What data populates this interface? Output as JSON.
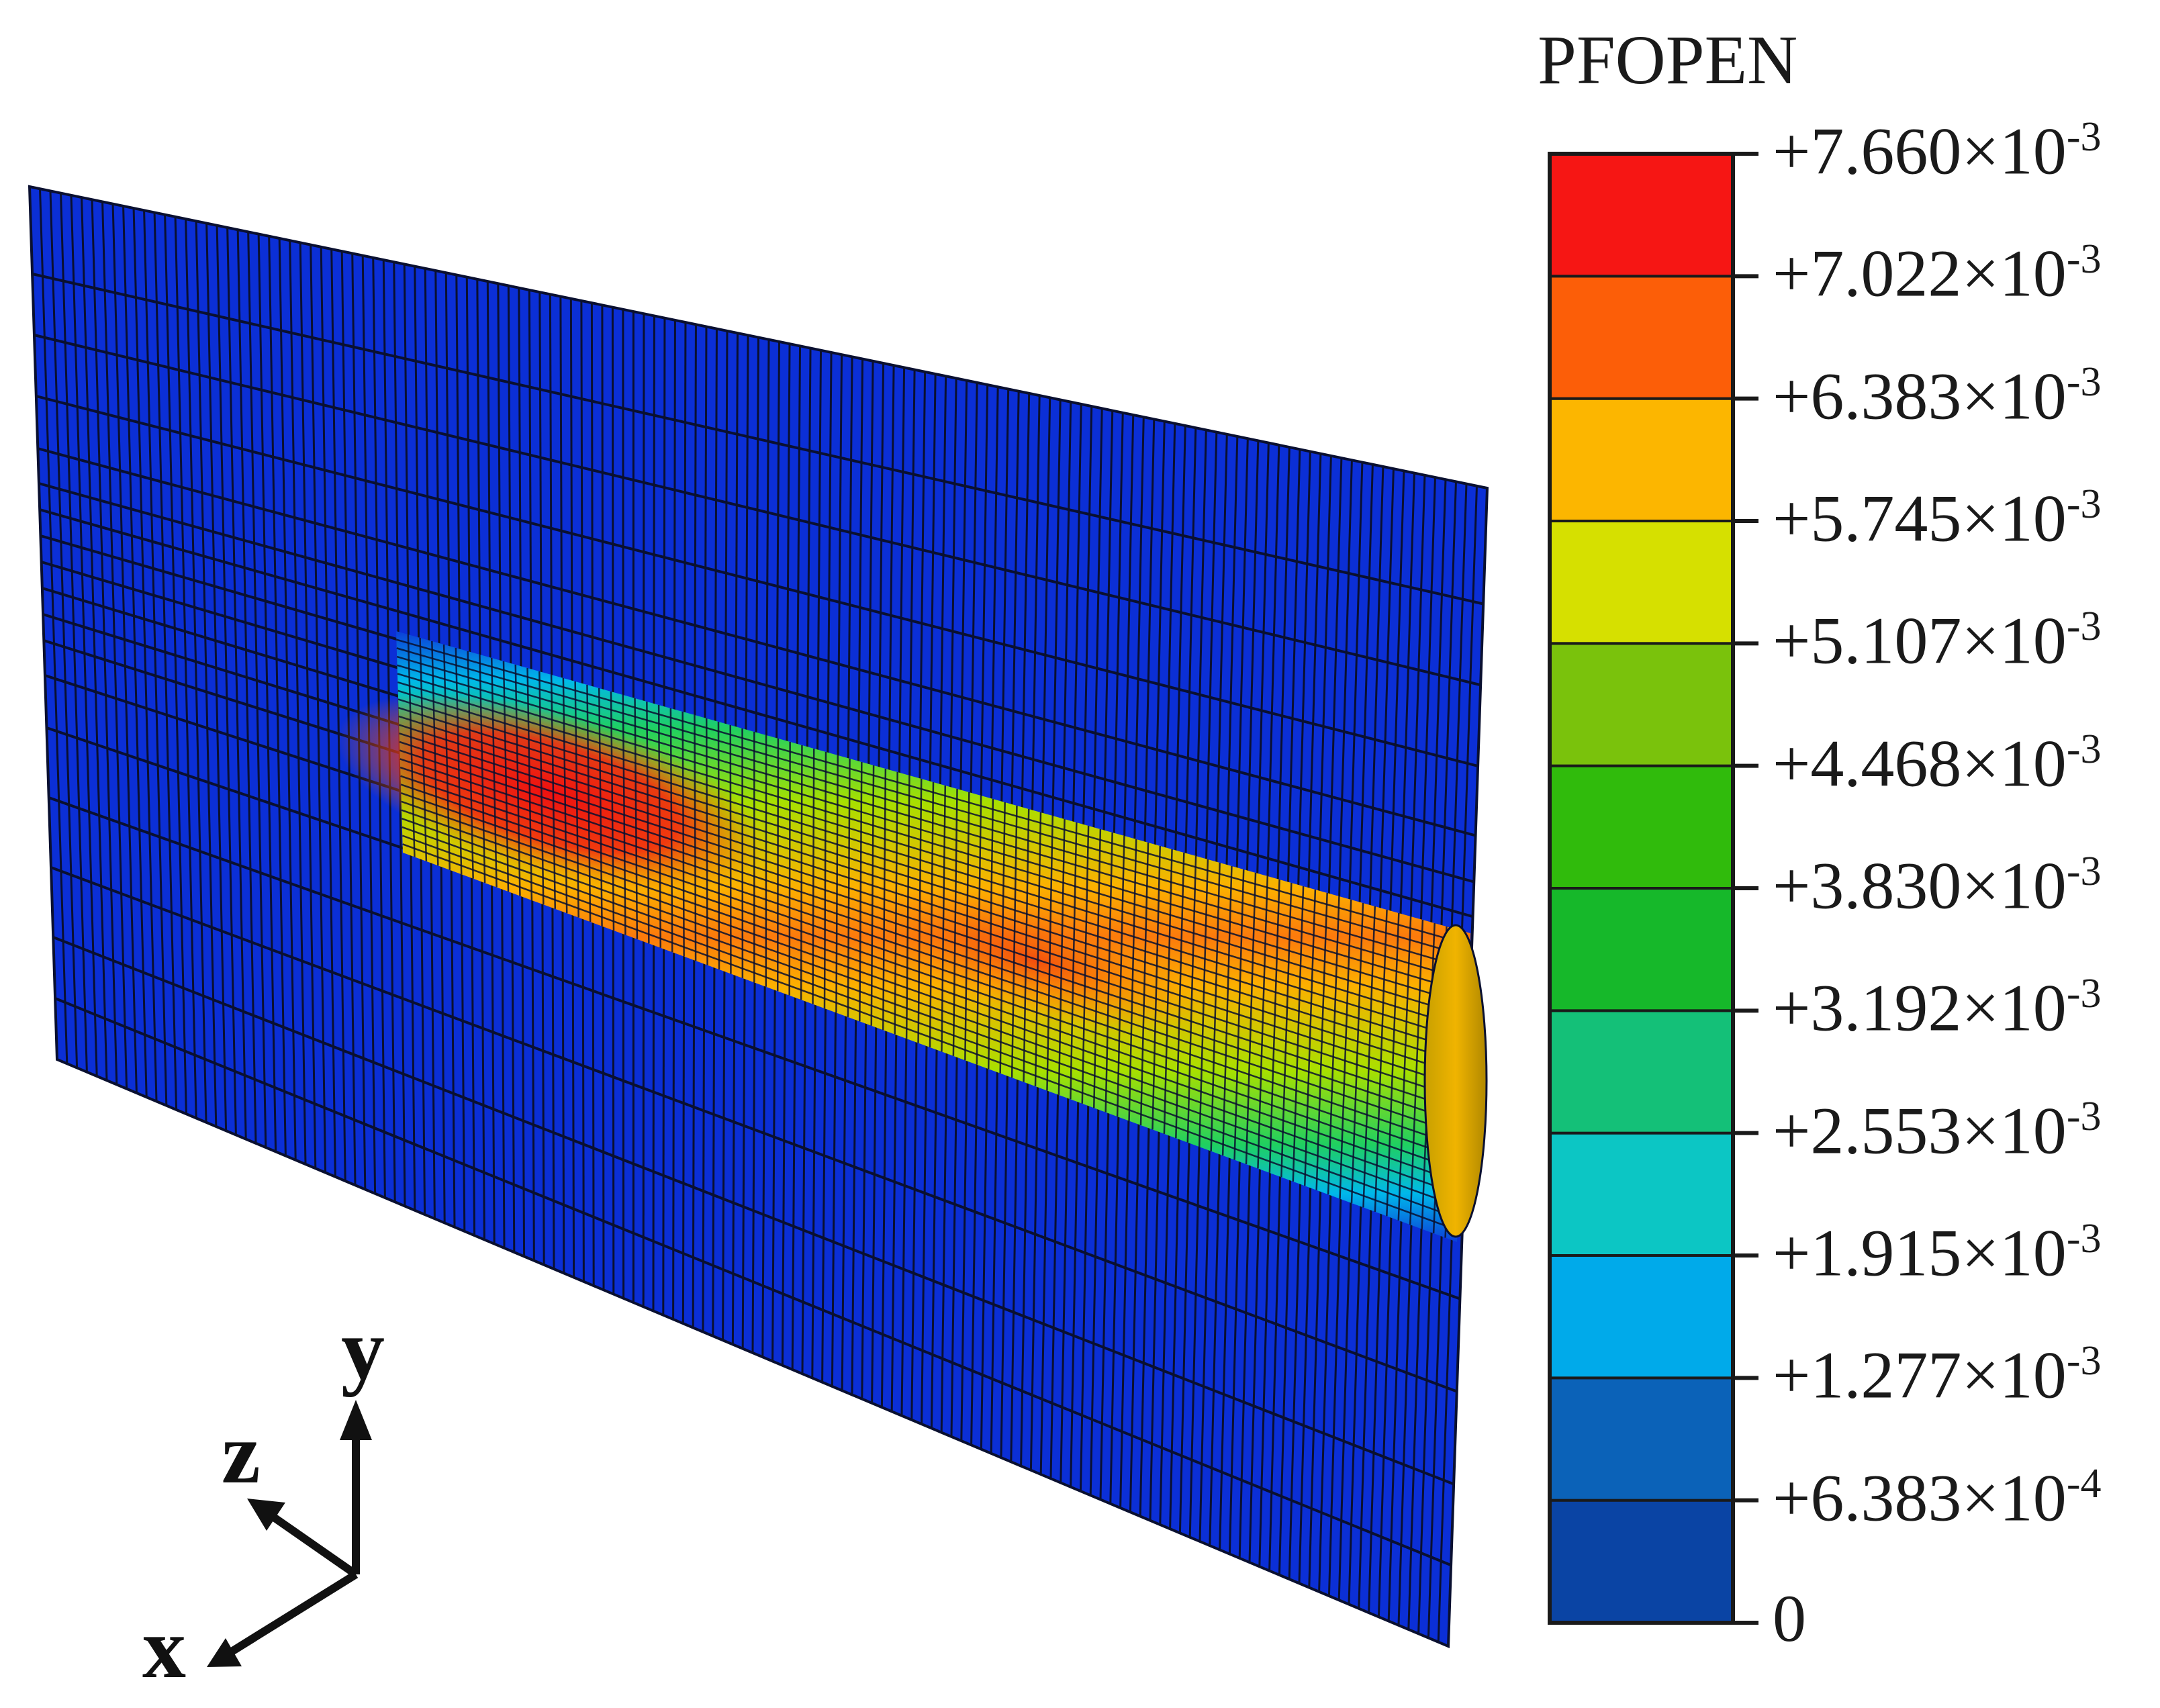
{
  "legend": {
    "title": "PFOPEN",
    "bands": [
      "#0a44a4",
      "#0b62b8",
      "#00aaea",
      "#0cc6c4",
      "#14c078",
      "#16b82a",
      "#30bb0c",
      "#7ac20c",
      "#d6e000",
      "#fcb600",
      "#fc5e08",
      "#f61614"
    ],
    "ticks": [
      {
        "mantissa": "+7.660",
        "exp": "-3"
      },
      {
        "mantissa": "+7.022",
        "exp": "-3"
      },
      {
        "mantissa": "+6.383",
        "exp": "-3"
      },
      {
        "mantissa": "+5.745",
        "exp": "-3"
      },
      {
        "mantissa": "+5.107",
        "exp": "-3"
      },
      {
        "mantissa": "+4.468",
        "exp": "-3"
      },
      {
        "mantissa": "+3.830",
        "exp": "-3"
      },
      {
        "mantissa": "+3.192",
        "exp": "-3"
      },
      {
        "mantissa": "+2.553",
        "exp": "-3"
      },
      {
        "mantissa": "+1.915",
        "exp": "-3"
      },
      {
        "mantissa": "+1.277",
        "exp": "-3"
      },
      {
        "mantissa": "+6.383",
        "exp": "-4"
      },
      {
        "mantissa": "0",
        "exp": ""
      }
    ]
  },
  "axes": {
    "x": "x",
    "y": "y",
    "z": "z"
  },
  "colors": {
    "mesh_line": "#0a1030",
    "plate": "#0b2fd6",
    "axis": "#111111"
  }
}
